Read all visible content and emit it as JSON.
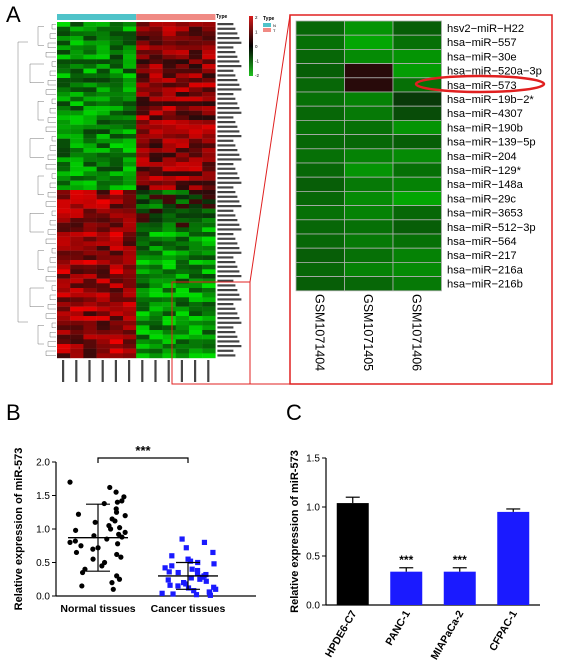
{
  "panels": {
    "a_label": "A",
    "b_label": "B",
    "c_label": "C"
  },
  "heatmap_overview": {
    "legend_title": "Type",
    "scale_ticks": [
      "2",
      "1",
      "0",
      "-1",
      "-2"
    ],
    "group_legend_title": "Type",
    "groups": [
      {
        "name": "N",
        "color": "#4fc3c9"
      },
      {
        "name": "T",
        "color": "#f08a84"
      }
    ],
    "colors": {
      "high": "#d91c1c",
      "mid": "#000000",
      "low": "#1fc21f"
    }
  },
  "zoom_heatmap": {
    "rows": [
      "hsv2−miR−H22",
      "hsa−miR−557",
      "hsa−miR−30e",
      "hsa−miR−520a−3p",
      "hsa−miR−573",
      "hsa−miR−19b−2*",
      "hsa−miR−4307",
      "hsa−miR−190b",
      "hsa−miR−139−5p",
      "hsa−miR−204",
      "hsa−miR−129*",
      "hsa−miR−148a",
      "hsa−miR−29c",
      "hsa−miR−3653",
      "hsa−miR−512−3p",
      "hsa−miR−564",
      "hsa−miR−217",
      "hsa−miR−216a",
      "hsa−miR−216b"
    ],
    "columns": [
      "GSM1071404",
      "GSM1071405",
      "GSM1071406"
    ],
    "highlighted_row": "hsa−miR−573"
  },
  "chart_data": [
    {
      "type": "scatter",
      "panel": "B",
      "ylabel": "Relative expression of miR-573",
      "categories": [
        "Normal tissues",
        "Cancer tissues"
      ],
      "ylim": [
        0.0,
        2.0
      ],
      "yticks": [
        "0.0",
        "0.5",
        "1.0",
        "1.5",
        "2.0"
      ],
      "significance": "***",
      "series": [
        {
          "mean": 0.87,
          "sd_upper": 1.37,
          "sd_lower": 0.37,
          "marker": "circle",
          "color": "#000000",
          "points": [
            1.7,
            1.62,
            1.55,
            1.48,
            1.42,
            1.4,
            1.38,
            1.3,
            1.25,
            1.22,
            1.2,
            1.15,
            1.12,
            1.1,
            1.05,
            1.02,
            1.0,
            0.98,
            0.95,
            0.92,
            0.9,
            0.88,
            0.85,
            0.82,
            0.8,
            0.78,
            0.75,
            0.72,
            0.7,
            0.65,
            0.62,
            0.58,
            0.55,
            0.5,
            0.45,
            0.4,
            0.35,
            0.3,
            0.25,
            0.2,
            0.15,
            0.1
          ]
        },
        {
          "mean": 0.3,
          "sd_upper": 0.5,
          "sd_lower": 0.1,
          "marker": "square",
          "color": "#1a1aff",
          "points": [
            0.85,
            0.8,
            0.72,
            0.65,
            0.6,
            0.55,
            0.52,
            0.5,
            0.48,
            0.45,
            0.42,
            0.4,
            0.38,
            0.36,
            0.35,
            0.33,
            0.32,
            0.3,
            0.28,
            0.27,
            0.25,
            0.24,
            0.22,
            0.2,
            0.18,
            0.16,
            0.15,
            0.13,
            0.12,
            0.1,
            0.08,
            0.06,
            0.05,
            0.04,
            0.03,
            0.02,
            0.01
          ]
        }
      ]
    },
    {
      "type": "bar",
      "panel": "C",
      "ylabel": "Relative expression of miR-573",
      "categories": [
        "HPDE6-C7",
        "PANC-1",
        "MIAPaCa-2",
        "CFPAC-1"
      ],
      "values": [
        1.04,
        0.34,
        0.34,
        0.95
      ],
      "errors": [
        0.06,
        0.04,
        0.04,
        0.03
      ],
      "colors": [
        "#000000",
        "#1a1aff",
        "#1a1aff",
        "#1a1aff"
      ],
      "significance": [
        "",
        "***",
        "***",
        ""
      ],
      "ylim": [
        0.0,
        1.5
      ],
      "yticks": [
        "0.0",
        "0.5",
        "1.0",
        "1.5"
      ]
    }
  ]
}
